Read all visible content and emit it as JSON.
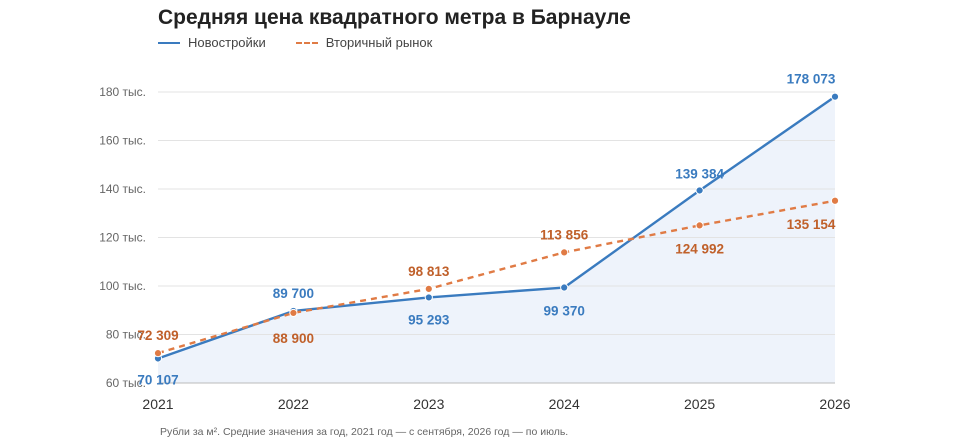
{
  "chart_data": {
    "type": "line",
    "title": "Средняя цена квадратного метра в Барнауле",
    "x": [
      "2021",
      "2022",
      "2023",
      "2024",
      "2025",
      "2026"
    ],
    "series": [
      {
        "name": "Новостройки",
        "values": [
          70107,
          89700,
          95293,
          99370,
          139384,
          178073
        ],
        "labels": [
          "70 107",
          "89 700",
          "95 293",
          "99 370",
          "139 384",
          "178 073"
        ],
        "color": "#3a7bbf",
        "style": "solid",
        "area_fill": "#eef3fb"
      },
      {
        "name": "Вторичный рынок",
        "values": [
          72309,
          88900,
          98813,
          113856,
          124992,
          135154
        ],
        "labels": [
          "72 309",
          "88 900",
          "98 813",
          "113 856",
          "124 992",
          "135 154"
        ],
        "color": "#e07b45",
        "label_color": "#c0602a",
        "style": "dashed"
      }
    ],
    "ylim": [
      60000,
      180000
    ],
    "yticks": [
      60000,
      80000,
      100000,
      120000,
      140000,
      160000,
      180000
    ],
    "ytick_labels": [
      "60 тыс.",
      "80 тыс.",
      "100 тыс.",
      "120 тыс.",
      "140 тыс.",
      "160 тыс.",
      "180 тыс."
    ],
    "grid": true,
    "legend_position": "top-left",
    "note": "Рубли за м². Средние значения за год, 2021 год — с сентября, 2026 год — по июль."
  }
}
